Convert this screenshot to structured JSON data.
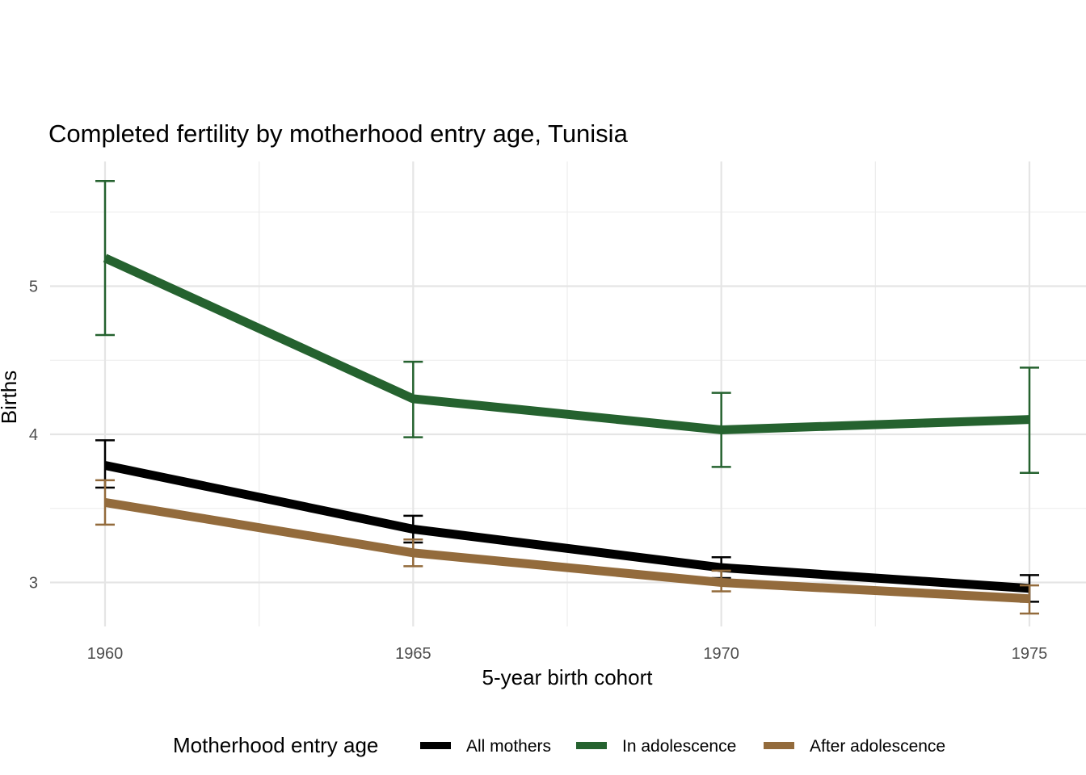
{
  "chart_data": {
    "type": "line",
    "title": "Completed fertility by motherhood entry age,  Tunisia",
    "xlabel": "5-year birth cohort",
    "ylabel": "Births",
    "x": [
      1960,
      1965,
      1970,
      1975
    ],
    "x_tick_labels": [
      "1960",
      "1965",
      "1970",
      "1975"
    ],
    "y_ticks": [
      3,
      4,
      5
    ],
    "y_tick_labels": [
      "3",
      "4",
      "5"
    ],
    "y_minor_gridlines": [
      3.5,
      4.5,
      5.5
    ],
    "x_minor_gridlines": [
      1962.5,
      1967.5,
      1972.5
    ],
    "xlim": [
      1959.1,
      1976
    ],
    "ylim": [
      2.69,
      5.83
    ],
    "grid": true,
    "legend": {
      "title": "Motherhood entry age",
      "position": "bottom"
    },
    "series": [
      {
        "name": "All mothers",
        "color": "#000000",
        "values": [
          3.79,
          3.36,
          3.1,
          2.96
        ],
        "lower": [
          3.64,
          3.27,
          3.03,
          2.87
        ],
        "upper": [
          3.96,
          3.45,
          3.17,
          3.05
        ]
      },
      {
        "name": "In adolescence",
        "color": "#25622f",
        "values": [
          5.19,
          4.24,
          4.03,
          4.1
        ],
        "lower": [
          4.67,
          3.98,
          3.78,
          3.74
        ],
        "upper": [
          5.71,
          4.49,
          4.28,
          4.45
        ]
      },
      {
        "name": "After adolescence",
        "color": "#936b3c",
        "values": [
          3.54,
          3.2,
          3.0,
          2.89
        ],
        "lower": [
          3.39,
          3.11,
          2.94,
          2.79
        ],
        "upper": [
          3.69,
          3.29,
          3.08,
          2.98
        ]
      }
    ]
  }
}
